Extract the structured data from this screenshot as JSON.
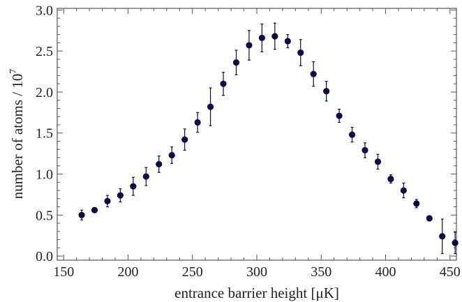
{
  "chart_data": {
    "type": "scatter",
    "title": "",
    "xlabel": "entrance barrier height [μK]",
    "ylabel_main": "number of atoms / 10",
    "ylabel_exp": "7",
    "xlim": [
      145,
      455
    ],
    "ylim": [
      -0.05,
      3.02
    ],
    "xticks": [
      150,
      200,
      250,
      300,
      350,
      400,
      450
    ],
    "xtick_labels": [
      "150",
      "200",
      "250",
      "300",
      "350",
      "400",
      "450"
    ],
    "yticks": [
      0.0,
      0.5,
      1.0,
      1.5,
      2.0,
      2.5,
      3.0
    ],
    "ytick_labels": [
      "0.0",
      "0.5",
      "1.0",
      "1.5",
      "2.0",
      "2.5",
      "3.0"
    ],
    "grid": false,
    "marker_color": "#0b0b45",
    "points": [
      {
        "x": 164,
        "y": 0.5,
        "err": 0.06
      },
      {
        "x": 174,
        "y": 0.56,
        "err": 0.03
      },
      {
        "x": 184,
        "y": 0.67,
        "err": 0.07
      },
      {
        "x": 194,
        "y": 0.74,
        "err": 0.08
      },
      {
        "x": 204,
        "y": 0.85,
        "err": 0.11
      },
      {
        "x": 214,
        "y": 0.97,
        "err": 0.11
      },
      {
        "x": 224,
        "y": 1.12,
        "err": 0.1
      },
      {
        "x": 234,
        "y": 1.23,
        "err": 0.1
      },
      {
        "x": 244,
        "y": 1.42,
        "err": 0.13
      },
      {
        "x": 254,
        "y": 1.63,
        "err": 0.12
      },
      {
        "x": 264,
        "y": 1.82,
        "err": 0.23
      },
      {
        "x": 274,
        "y": 2.1,
        "err": 0.14
      },
      {
        "x": 284,
        "y": 2.36,
        "err": 0.15
      },
      {
        "x": 294,
        "y": 2.57,
        "err": 0.18
      },
      {
        "x": 304,
        "y": 2.66,
        "err": 0.17
      },
      {
        "x": 314,
        "y": 2.68,
        "err": 0.16
      },
      {
        "x": 324,
        "y": 2.62,
        "err": 0.08
      },
      {
        "x": 334,
        "y": 2.48,
        "err": 0.16
      },
      {
        "x": 344,
        "y": 2.22,
        "err": 0.15
      },
      {
        "x": 354,
        "y": 2.01,
        "err": 0.12
      },
      {
        "x": 364,
        "y": 1.71,
        "err": 0.08
      },
      {
        "x": 374,
        "y": 1.48,
        "err": 0.09
      },
      {
        "x": 384,
        "y": 1.29,
        "err": 0.09
      },
      {
        "x": 394,
        "y": 1.15,
        "err": 0.09
      },
      {
        "x": 404,
        "y": 0.94,
        "err": 0.05
      },
      {
        "x": 414,
        "y": 0.8,
        "err": 0.09
      },
      {
        "x": 424,
        "y": 0.64,
        "err": 0.05
      },
      {
        "x": 434,
        "y": 0.46,
        "err": 0.02
      },
      {
        "x": 444,
        "y": 0.24,
        "err": 0.21
      },
      {
        "x": 454,
        "y": 0.16,
        "err": 0.13
      }
    ]
  }
}
